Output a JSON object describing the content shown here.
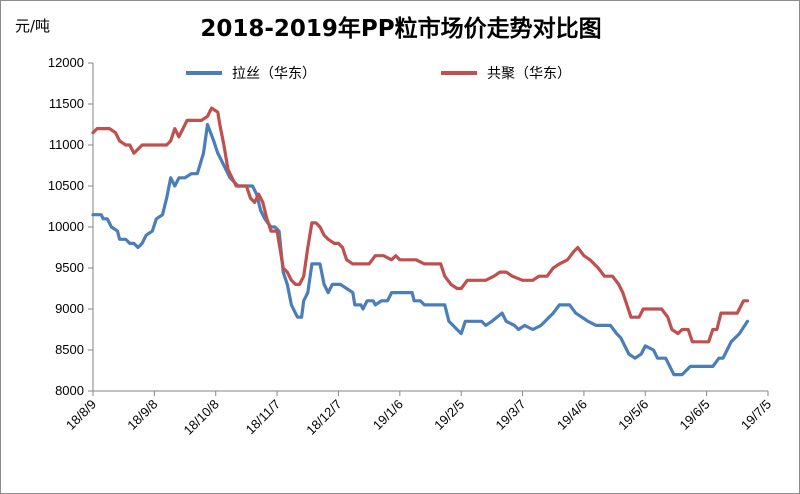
{
  "chart_data": {
    "type": "line",
    "title": "2018-2019年PP粒市场价走势对比图",
    "unit_label": "元/吨",
    "ylim": [
      8000,
      12000
    ],
    "y_ticks": [
      8000,
      8500,
      9000,
      9500,
      10000,
      10500,
      11000,
      11500,
      12000
    ],
    "x_range": [
      0,
      330
    ],
    "x_ticks": [
      {
        "label": "18/8/9",
        "x": 0
      },
      {
        "label": "18/9/8",
        "x": 30
      },
      {
        "label": "18/10/8",
        "x": 60
      },
      {
        "label": "18/11/7",
        "x": 90
      },
      {
        "label": "18/12/7",
        "x": 120
      },
      {
        "label": "19/1/6",
        "x": 150
      },
      {
        "label": "19/2/5",
        "x": 180
      },
      {
        "label": "19/3/7",
        "x": 210
      },
      {
        "label": "19/4/6",
        "x": 240
      },
      {
        "label": "19/5/6",
        "x": 270
      },
      {
        "label": "19/6/5",
        "x": 300
      },
      {
        "label": "19/7/5",
        "x": 330
      }
    ],
    "grid": false,
    "legend_position": "top",
    "series": [
      {
        "name": "拉丝（华东）",
        "color": "#4a7ebb",
        "points": [
          [
            0,
            10150
          ],
          [
            4,
            10150
          ],
          [
            5,
            10100
          ],
          [
            7,
            10100
          ],
          [
            9,
            10000
          ],
          [
            12,
            9950
          ],
          [
            13,
            9850
          ],
          [
            16,
            9850
          ],
          [
            18,
            9800
          ],
          [
            20,
            9800
          ],
          [
            22,
            9750
          ],
          [
            24,
            9800
          ],
          [
            26,
            9900
          ],
          [
            29,
            9950
          ],
          [
            31,
            10100
          ],
          [
            34,
            10150
          ],
          [
            36,
            10350
          ],
          [
            38,
            10600
          ],
          [
            40,
            10500
          ],
          [
            42,
            10600
          ],
          [
            45,
            10600
          ],
          [
            48,
            10650
          ],
          [
            51,
            10650
          ],
          [
            54,
            10900
          ],
          [
            56,
            11250
          ],
          [
            59,
            11050
          ],
          [
            61,
            10900
          ],
          [
            63,
            10800
          ],
          [
            65,
            10700
          ],
          [
            67,
            10600
          ],
          [
            69,
            10550
          ],
          [
            71,
            10500
          ],
          [
            74,
            10500
          ],
          [
            78,
            10500
          ],
          [
            80,
            10400
          ],
          [
            82,
            10200
          ],
          [
            84,
            10100
          ],
          [
            87,
            10000
          ],
          [
            89,
            10000
          ],
          [
            91,
            9950
          ],
          [
            93,
            9450
          ],
          [
            95,
            9300
          ],
          [
            97,
            9050
          ],
          [
            100,
            8900
          ],
          [
            102,
            8900
          ],
          [
            103,
            9100
          ],
          [
            105,
            9200
          ],
          [
            107,
            9550
          ],
          [
            109,
            9550
          ],
          [
            111,
            9550
          ],
          [
            113,
            9300
          ],
          [
            115,
            9200
          ],
          [
            117,
            9300
          ],
          [
            121,
            9300
          ],
          [
            124,
            9250
          ],
          [
            127,
            9200
          ],
          [
            128,
            9050
          ],
          [
            131,
            9050
          ],
          [
            132,
            9000
          ],
          [
            134,
            9100
          ],
          [
            137,
            9100
          ],
          [
            138,
            9050
          ],
          [
            141,
            9100
          ],
          [
            144,
            9100
          ],
          [
            146,
            9200
          ],
          [
            150,
            9200
          ],
          [
            152,
            9200
          ],
          [
            156,
            9200
          ],
          [
            157,
            9100
          ],
          [
            160,
            9100
          ],
          [
            162,
            9050
          ],
          [
            165,
            9050
          ],
          [
            172,
            9050
          ],
          [
            174,
            8850
          ],
          [
            178,
            8750
          ],
          [
            180,
            8700
          ],
          [
            182,
            8850
          ],
          [
            185,
            8850
          ],
          [
            190,
            8850
          ],
          [
            192,
            8800
          ],
          [
            195,
            8850
          ],
          [
            200,
            8950
          ],
          [
            202,
            8850
          ],
          [
            206,
            8800
          ],
          [
            208,
            8750
          ],
          [
            211,
            8800
          ],
          [
            215,
            8750
          ],
          [
            219,
            8800
          ],
          [
            223,
            8900
          ],
          [
            225,
            8950
          ],
          [
            228,
            9050
          ],
          [
            233,
            9050
          ],
          [
            236,
            8950
          ],
          [
            239,
            8900
          ],
          [
            242,
            8850
          ],
          [
            246,
            8800
          ],
          [
            253,
            8800
          ],
          [
            256,
            8700
          ],
          [
            258,
            8650
          ],
          [
            260,
            8550
          ],
          [
            262,
            8450
          ],
          [
            265,
            8400
          ],
          [
            268,
            8450
          ],
          [
            270,
            8550
          ],
          [
            274,
            8500
          ],
          [
            276,
            8400
          ],
          [
            280,
            8400
          ],
          [
            284,
            8200
          ],
          [
            288,
            8200
          ],
          [
            292,
            8300
          ],
          [
            298,
            8300
          ],
          [
            303,
            8300
          ],
          [
            306,
            8400
          ],
          [
            308,
            8400
          ],
          [
            310,
            8500
          ],
          [
            312,
            8600
          ],
          [
            316,
            8700
          ],
          [
            320,
            8850
          ]
        ]
      },
      {
        "name": "共聚（华东）",
        "color": "#c0504d",
        "points": [
          [
            0,
            11150
          ],
          [
            2,
            11200
          ],
          [
            8,
            11200
          ],
          [
            11,
            11150
          ],
          [
            13,
            11050
          ],
          [
            16,
            11000
          ],
          [
            18,
            11000
          ],
          [
            20,
            10900
          ],
          [
            22,
            10950
          ],
          [
            24,
            11000
          ],
          [
            28,
            11000
          ],
          [
            33,
            11000
          ],
          [
            36,
            11000
          ],
          [
            38,
            11050
          ],
          [
            40,
            11200
          ],
          [
            42,
            11100
          ],
          [
            44,
            11200
          ],
          [
            46,
            11300
          ],
          [
            53,
            11300
          ],
          [
            56,
            11350
          ],
          [
            58,
            11450
          ],
          [
            61,
            11400
          ],
          [
            62,
            11250
          ],
          [
            64,
            11000
          ],
          [
            66,
            10700
          ],
          [
            68,
            10600
          ],
          [
            70,
            10500
          ],
          [
            72,
            10500
          ],
          [
            75,
            10500
          ],
          [
            77,
            10350
          ],
          [
            79,
            10300
          ],
          [
            81,
            10400
          ],
          [
            83,
            10300
          ],
          [
            85,
            10100
          ],
          [
            87,
            9950
          ],
          [
            90,
            9950
          ],
          [
            93,
            9500
          ],
          [
            95,
            9450
          ],
          [
            97,
            9350
          ],
          [
            99,
            9300
          ],
          [
            101,
            9300
          ],
          [
            103,
            9400
          ],
          [
            105,
            9750
          ],
          [
            107,
            10050
          ],
          [
            109,
            10050
          ],
          [
            111,
            10000
          ],
          [
            113,
            9900
          ],
          [
            115,
            9850
          ],
          [
            118,
            9800
          ],
          [
            120,
            9800
          ],
          [
            122,
            9750
          ],
          [
            124,
            9600
          ],
          [
            127,
            9550
          ],
          [
            133,
            9550
          ],
          [
            135,
            9550
          ],
          [
            138,
            9650
          ],
          [
            142,
            9650
          ],
          [
            146,
            9600
          ],
          [
            148,
            9650
          ],
          [
            150,
            9600
          ],
          [
            155,
            9600
          ],
          [
            158,
            9600
          ],
          [
            162,
            9550
          ],
          [
            170,
            9550
          ],
          [
            172,
            9400
          ],
          [
            175,
            9300
          ],
          [
            178,
            9250
          ],
          [
            180,
            9250
          ],
          [
            183,
            9350
          ],
          [
            188,
            9350
          ],
          [
            192,
            9350
          ],
          [
            196,
            9400
          ],
          [
            199,
            9450
          ],
          [
            202,
            9450
          ],
          [
            205,
            9400
          ],
          [
            210,
            9350
          ],
          [
            215,
            9350
          ],
          [
            218,
            9400
          ],
          [
            222,
            9400
          ],
          [
            225,
            9500
          ],
          [
            228,
            9550
          ],
          [
            232,
            9600
          ],
          [
            235,
            9700
          ],
          [
            237,
            9750
          ],
          [
            240,
            9650
          ],
          [
            243,
            9600
          ],
          [
            247,
            9500
          ],
          [
            250,
            9400
          ],
          [
            254,
            9400
          ],
          [
            257,
            9300
          ],
          [
            259,
            9200
          ],
          [
            261,
            9050
          ],
          [
            263,
            8900
          ],
          [
            267,
            8900
          ],
          [
            269,
            9000
          ],
          [
            271,
            9000
          ],
          [
            275,
            9000
          ],
          [
            278,
            9000
          ],
          [
            281,
            8900
          ],
          [
            283,
            8750
          ],
          [
            286,
            8700
          ],
          [
            288,
            8750
          ],
          [
            291,
            8750
          ],
          [
            293,
            8600
          ],
          [
            298,
            8600
          ],
          [
            301,
            8600
          ],
          [
            303,
            8750
          ],
          [
            305,
            8750
          ],
          [
            307,
            8950
          ],
          [
            311,
            8950
          ],
          [
            315,
            8950
          ],
          [
            318,
            9100
          ],
          [
            320,
            9100
          ]
        ]
      }
    ]
  }
}
